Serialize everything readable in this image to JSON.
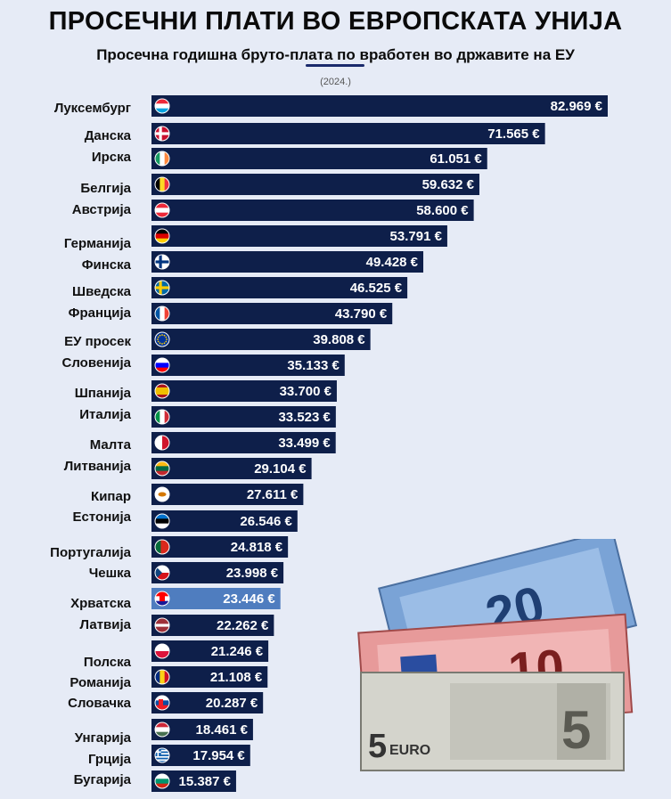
{
  "header": {
    "title": "ПРОСЕЧНИ ПЛАТИ ВО ЕВРОПСКАТА УНИЈА",
    "subtitle": "Просечна годишна бруто-плата по вработен во државите на ЕУ",
    "year": "(2024.)"
  },
  "colors": {
    "bar": "#0e1f4a",
    "highlight_bar": "#4f7dbf",
    "background": "#e6ebf6"
  },
  "banknotes": {
    "labels": [
      "20",
      "10",
      "5",
      "EURO"
    ]
  },
  "chart_data": {
    "type": "bar",
    "orientation": "horizontal",
    "title": "ПРОСЕЧНИ ПЛАТИ ВО ЕВРОПСКАТА УНИЈА",
    "subtitle": "Просечна годишна бруто-плата по вработен во државите на ЕУ",
    "unit": "€",
    "highlighted_category": "Хрватска",
    "categories": [
      "Луксембург",
      "Данска",
      "Ирска",
      "Белгија",
      "Австрија",
      "Германија",
      "Финска",
      "Шведска",
      "Франција",
      "ЕУ просек",
      "Словенија",
      "Шпанија",
      "Италија",
      "Малта",
      "Литванија",
      "Кипар",
      "Естонија",
      "Португалија",
      "Чешка",
      "Хрватска",
      "Латвија",
      "Полска",
      "Романија",
      "Словачка",
      "Унгарија",
      "Грција",
      "Бугарија"
    ],
    "values": [
      82969,
      71565,
      61051,
      59632,
      58600,
      53791,
      49428,
      46525,
      43790,
      39808,
      35133,
      33700,
      33523,
      33499,
      29104,
      27611,
      26546,
      24818,
      23998,
      23446,
      22262,
      21246,
      21108,
      20287,
      18461,
      17954,
      15387
    ],
    "value_labels": [
      "82.969 €",
      "71.565 €",
      "61.051 €",
      "59.632 €",
      "58.600 €",
      "53.791 €",
      "49.428 €",
      "46.525 €",
      "43.790 €",
      "39.808 €",
      "35.133 €",
      "33.700 €",
      "33.523 €",
      "33.499 €",
      "29.104 €",
      "27.611 €",
      "26.546 €",
      "24.818 €",
      "23.998 €",
      "23.446 €",
      "22.262 €",
      "21.246 €",
      "21.108 €",
      "20.287 €",
      "18.461 €",
      "17.954 €",
      "15.387 €"
    ],
    "flags": [
      "luxembourg-flag",
      "denmark-flag",
      "ireland-flag",
      "belgium-flag",
      "austria-flag",
      "germany-flag",
      "finland-flag",
      "sweden-flag",
      "france-flag",
      "eu-flag",
      "slovenia-flag",
      "spain-flag",
      "italy-flag",
      "malta-flag",
      "lithuania-flag",
      "cyprus-flag",
      "estonia-flag",
      "portugal-flag",
      "czechia-flag",
      "croatia-flag",
      "latvia-flag",
      "poland-flag",
      "romania-flag",
      "slovakia-flag",
      "hungary-flag",
      "greece-flag",
      "bulgaria-flag"
    ],
    "xlim": [
      0,
      82969
    ]
  }
}
